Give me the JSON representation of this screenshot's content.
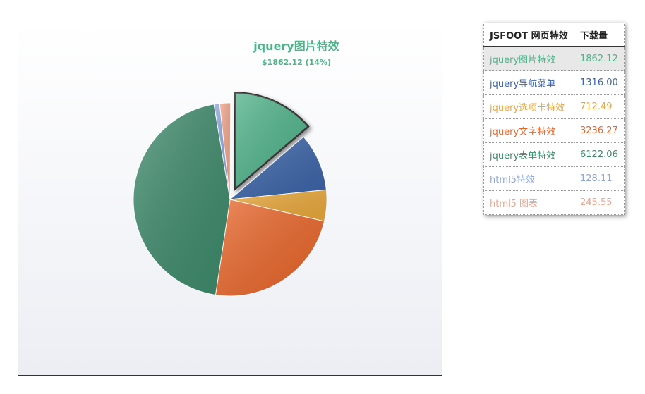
{
  "chart_data": {
    "type": "pie",
    "categories": [
      "jquery图片特效",
      "jquery导航菜单",
      "jquery选项卡特效",
      "jquery文字特效",
      "jquery表单特效",
      "html5特效",
      "html5 图表"
    ],
    "values": [
      1862.12,
      1316.0,
      712.49,
      3236.27,
      6122.06,
      128.11,
      245.55
    ],
    "value_labels": [
      "1862.12",
      "1316.00",
      "712.49",
      "3236.27",
      "6122.06",
      "128.11",
      "245.55"
    ],
    "colors": [
      "#4fb38a",
      "#3b64a8",
      "#e9a83a",
      "#e9662a",
      "#3d8a6b",
      "#8fa6dd",
      "#f0a48a"
    ],
    "annotation": "$1862.12 (14%)",
    "table_headers": [
      "JSFOOT 网页特效",
      "下载量"
    ]
  }
}
